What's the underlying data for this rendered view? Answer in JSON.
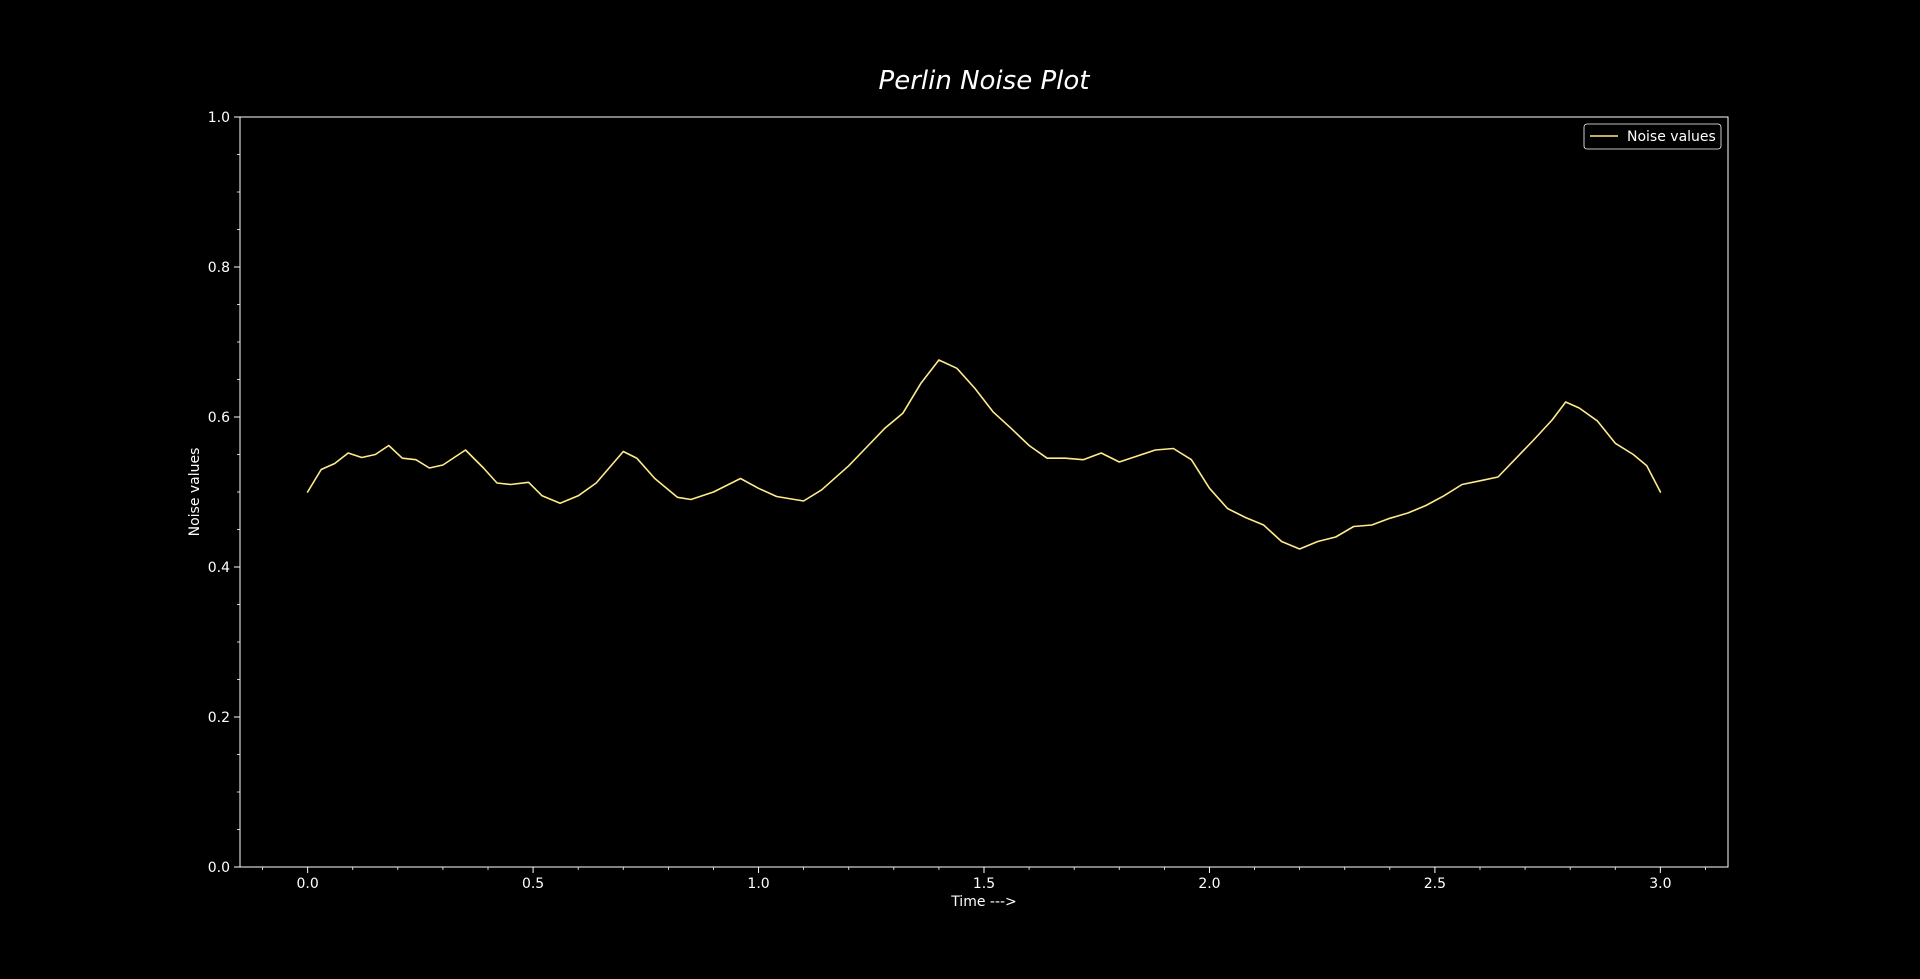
{
  "chart_data": {
    "type": "line",
    "title": "Perlin Noise Plot",
    "xlabel": "Time --->",
    "ylabel": "Noise values",
    "xlim": [
      -0.15,
      3.15
    ],
    "ylim": [
      0.0,
      1.0
    ],
    "xticks": [
      0.0,
      0.5,
      1.0,
      1.5,
      2.0,
      2.5,
      3.0
    ],
    "xtick_labels": [
      "0.0",
      "0.5",
      "1.0",
      "1.5",
      "2.0",
      "2.5",
      "3.0"
    ],
    "yticks": [
      0.0,
      0.2,
      0.4,
      0.6,
      0.8,
      1.0
    ],
    "ytick_labels": [
      "0.0",
      "0.2",
      "0.4",
      "0.6",
      "0.8",
      "1.0"
    ],
    "grid": false,
    "legend_position": "top-right",
    "background_color": "#000000",
    "axis_color": "#ffffff",
    "series": [
      {
        "name": "Noise values",
        "color": "#ffeb8a",
        "x": [
          0.0,
          0.03,
          0.06,
          0.09,
          0.12,
          0.15,
          0.18,
          0.21,
          0.24,
          0.27,
          0.3,
          0.35,
          0.39,
          0.42,
          0.45,
          0.49,
          0.52,
          0.56,
          0.6,
          0.64,
          0.7,
          0.73,
          0.77,
          0.82,
          0.85,
          0.9,
          0.96,
          1.0,
          1.04,
          1.1,
          1.14,
          1.2,
          1.24,
          1.28,
          1.32,
          1.36,
          1.4,
          1.44,
          1.48,
          1.52,
          1.56,
          1.6,
          1.64,
          1.68,
          1.72,
          1.76,
          1.8,
          1.84,
          1.88,
          1.92,
          1.96,
          2.0,
          2.04,
          2.08,
          2.12,
          2.16,
          2.2,
          2.24,
          2.28,
          2.32,
          2.36,
          2.4,
          2.44,
          2.48,
          2.52,
          2.56,
          2.6,
          2.64,
          2.68,
          2.72,
          2.76,
          2.79,
          2.82,
          2.86,
          2.9,
          2.94,
          2.97,
          3.0
        ],
        "y": [
          0.5,
          0.53,
          0.538,
          0.552,
          0.546,
          0.55,
          0.562,
          0.545,
          0.543,
          0.532,
          0.536,
          0.556,
          0.532,
          0.512,
          0.51,
          0.513,
          0.495,
          0.485,
          0.495,
          0.512,
          0.554,
          0.545,
          0.518,
          0.493,
          0.49,
          0.5,
          0.518,
          0.505,
          0.494,
          0.488,
          0.503,
          0.535,
          0.56,
          0.585,
          0.605,
          0.645,
          0.676,
          0.665,
          0.638,
          0.607,
          0.585,
          0.562,
          0.545,
          0.545,
          0.543,
          0.552,
          0.54,
          0.548,
          0.556,
          0.558,
          0.543,
          0.505,
          0.478,
          0.466,
          0.456,
          0.434,
          0.424,
          0.434,
          0.44,
          0.454,
          0.456,
          0.465,
          0.472,
          0.482,
          0.495,
          0.51,
          0.515,
          0.52,
          0.545,
          0.57,
          0.596,
          0.62,
          0.612,
          0.595,
          0.565,
          0.55,
          0.535,
          0.5
        ]
      }
    ]
  }
}
